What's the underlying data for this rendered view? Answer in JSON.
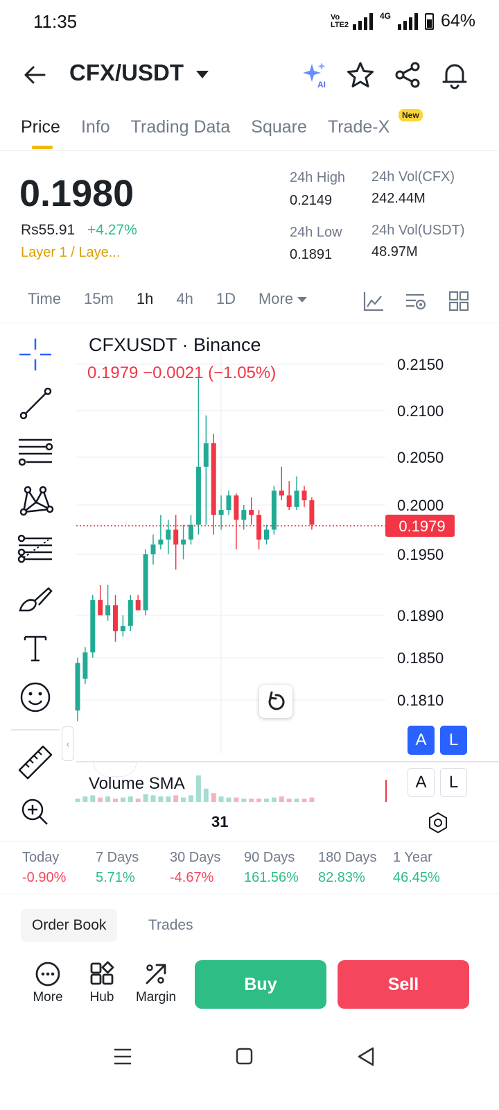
{
  "status_bar": {
    "time": "11:35",
    "network_label": "4G",
    "battery": "64%"
  },
  "header": {
    "pair": "CFX/USDT"
  },
  "tabs": [
    {
      "label": "Price",
      "active": true
    },
    {
      "label": "Info",
      "active": false
    },
    {
      "label": "Trading Data",
      "active": false
    },
    {
      "label": "Square",
      "active": false
    },
    {
      "label": "Trade-X",
      "active": false
    }
  ],
  "new_badge": "New",
  "price": {
    "last": "0.1980",
    "fiat": "Rs55.91",
    "change": "+4.27%",
    "category": "Layer 1 / Laye...",
    "high_label": "24h High",
    "high": "0.2149",
    "low_label": "24h Low",
    "low": "0.1891",
    "vol_base_label": "24h Vol(CFX)",
    "vol_base": "242.44M",
    "vol_quote_label": "24h Vol(USDT)",
    "vol_quote": "48.97M"
  },
  "timeframes": [
    {
      "label": "Time",
      "active": false
    },
    {
      "label": "15m",
      "active": false
    },
    {
      "label": "1h",
      "active": true
    },
    {
      "label": "4h",
      "active": false
    },
    {
      "label": "1D",
      "active": false
    }
  ],
  "timeframe_more": "More",
  "chart": {
    "title": "CFXUSDT · Binance",
    "ohlc": "0.1979  −0.0021 (−1.05%)",
    "current_price_tag": "0.1979",
    "volume_label": "Volume SMA",
    "date_tick": "31",
    "scale_buttons": [
      "A",
      "L",
      "A",
      "L"
    ]
  },
  "chart_data": {
    "type": "candlestick",
    "title": "CFXUSDT · Binance",
    "y_ticks": [
      0.215,
      0.21,
      0.205,
      0.2,
      0.195,
      0.189,
      0.185,
      0.181
    ],
    "y_tick_labels": [
      "0.2150",
      "0.2100",
      "0.2050",
      "0.2000",
      "0.1950",
      "0.1890",
      "0.1850",
      "0.1810"
    ],
    "current_price": 0.1979,
    "x_tick_labels": [
      "31"
    ],
    "candles": [
      {
        "o": 0.18,
        "h": 0.185,
        "l": 0.179,
        "c": 0.1845
      },
      {
        "o": 0.183,
        "h": 0.186,
        "l": 0.1825,
        "c": 0.1855
      },
      {
        "o": 0.1855,
        "h": 0.191,
        "l": 0.185,
        "c": 0.1905
      },
      {
        "o": 0.1905,
        "h": 0.192,
        "l": 0.189,
        "c": 0.189
      },
      {
        "o": 0.189,
        "h": 0.192,
        "l": 0.1885,
        "c": 0.19
      },
      {
        "o": 0.19,
        "h": 0.191,
        "l": 0.1865,
        "c": 0.1875
      },
      {
        "o": 0.1875,
        "h": 0.189,
        "l": 0.187,
        "c": 0.188
      },
      {
        "o": 0.188,
        "h": 0.191,
        "l": 0.1875,
        "c": 0.1905
      },
      {
        "o": 0.1905,
        "h": 0.191,
        "l": 0.1895,
        "c": 0.1895
      },
      {
        "o": 0.1895,
        "h": 0.1955,
        "l": 0.189,
        "c": 0.195
      },
      {
        "o": 0.195,
        "h": 0.197,
        "l": 0.194,
        "c": 0.196
      },
      {
        "o": 0.196,
        "h": 0.199,
        "l": 0.1955,
        "c": 0.1965
      },
      {
        "o": 0.1965,
        "h": 0.1985,
        "l": 0.195,
        "c": 0.1975
      },
      {
        "o": 0.1975,
        "h": 0.199,
        "l": 0.1935,
        "c": 0.196
      },
      {
        "o": 0.196,
        "h": 0.198,
        "l": 0.1945,
        "c": 0.1965
      },
      {
        "o": 0.1965,
        "h": 0.199,
        "l": 0.196,
        "c": 0.198
      },
      {
        "o": 0.198,
        "h": 0.2135,
        "l": 0.197,
        "c": 0.204
      },
      {
        "o": 0.204,
        "h": 0.2095,
        "l": 0.198,
        "c": 0.2065
      },
      {
        "o": 0.2065,
        "h": 0.2075,
        "l": 0.197,
        "c": 0.199
      },
      {
        "o": 0.199,
        "h": 0.201,
        "l": 0.1975,
        "c": 0.1995
      },
      {
        "o": 0.1995,
        "h": 0.2015,
        "l": 0.199,
        "c": 0.201
      },
      {
        "o": 0.201,
        "h": 0.2012,
        "l": 0.1955,
        "c": 0.1985
      },
      {
        "o": 0.1985,
        "h": 0.2,
        "l": 0.1975,
        "c": 0.1995
      },
      {
        "o": 0.1995,
        "h": 0.2008,
        "l": 0.198,
        "c": 0.199
      },
      {
        "o": 0.199,
        "h": 0.1995,
        "l": 0.1955,
        "c": 0.1965
      },
      {
        "o": 0.1965,
        "h": 0.198,
        "l": 0.196,
        "c": 0.1975
      },
      {
        "o": 0.1975,
        "h": 0.202,
        "l": 0.197,
        "c": 0.2015
      },
      {
        "o": 0.2015,
        "h": 0.204,
        "l": 0.2005,
        "c": 0.201
      },
      {
        "o": 0.201,
        "h": 0.2025,
        "l": 0.1995,
        "c": 0.1998
      },
      {
        "o": 0.1998,
        "h": 0.203,
        "l": 0.1995,
        "c": 0.2015
      },
      {
        "o": 0.2015,
        "h": 0.202,
        "l": 0.1998,
        "c": 0.2005
      },
      {
        "o": 0.2005,
        "h": 0.2008,
        "l": 0.1975,
        "c": 0.198
      }
    ],
    "volumes": [
      3,
      5,
      6,
      4,
      5,
      3,
      4,
      5,
      3,
      7,
      6,
      5,
      5,
      6,
      4,
      6,
      24,
      12,
      8,
      5,
      4,
      4,
      3,
      3,
      3,
      3,
      4,
      5,
      3,
      3,
      3,
      4
    ]
  },
  "drawing_tools": [
    "crosshair-icon",
    "trend-line-icon",
    "horizontal-lines-icon",
    "pattern-icon",
    "fib-icon",
    "brush-icon",
    "text-icon",
    "emoji-icon",
    "ruler-icon",
    "zoom-in-icon"
  ],
  "performance": [
    {
      "label": "Today",
      "value": "-0.90%",
      "dir": "neg"
    },
    {
      "label": "7 Days",
      "value": "5.71%",
      "dir": "pos"
    },
    {
      "label": "30 Days",
      "value": "-4.67%",
      "dir": "neg"
    },
    {
      "label": "90 Days",
      "value": "161.56%",
      "dir": "pos"
    },
    {
      "label": "180 Days",
      "value": "82.83%",
      "dir": "pos"
    },
    {
      "label": "1 Year",
      "value": "46.45%",
      "dir": "pos"
    }
  ],
  "orderbook": {
    "tab_book": "Order Book",
    "tab_trades": "Trades"
  },
  "bottom_actions": {
    "more": "More",
    "hub": "Hub",
    "margin": "Margin",
    "buy": "Buy",
    "sell": "Sell"
  },
  "colors": {
    "up": "#2ebd85",
    "down": "#f6465d",
    "accent": "#f0b90b",
    "link_blue": "#2962ff"
  }
}
